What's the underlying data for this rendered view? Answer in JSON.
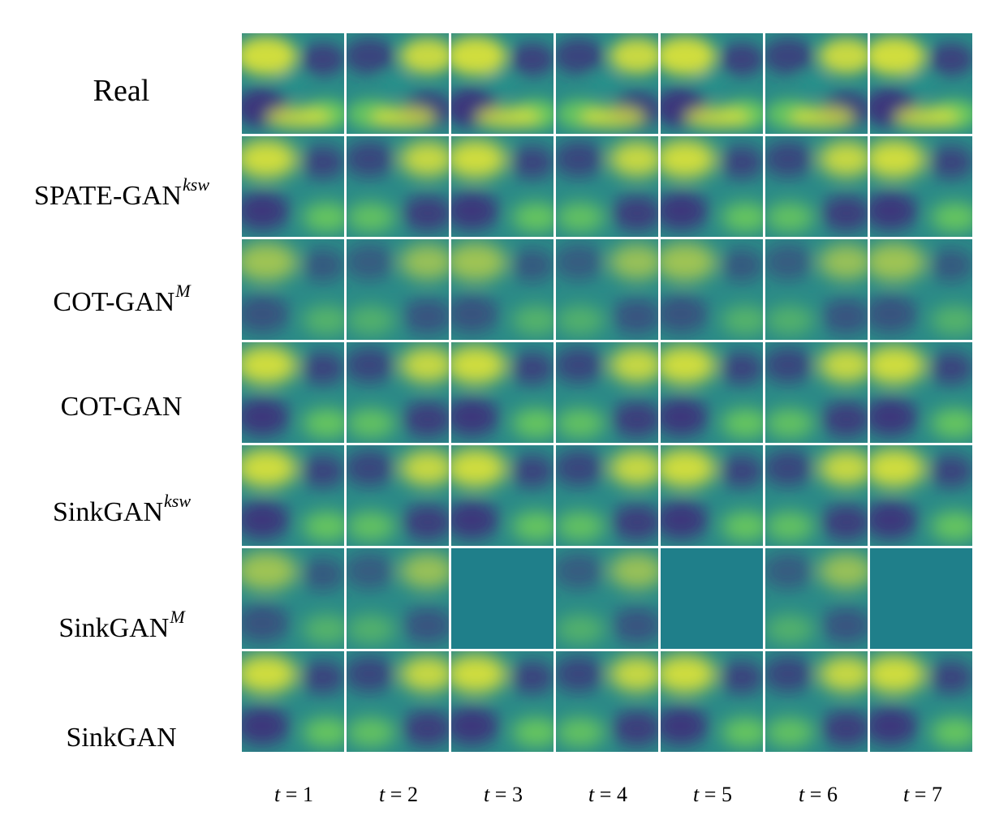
{
  "figure": {
    "rows": [
      {
        "label": "Real",
        "sup": ""
      },
      {
        "label": "SPATE-GAN",
        "sup": "ksw"
      },
      {
        "label": "COT-GAN",
        "sup": "M"
      },
      {
        "label": "COT-GAN",
        "sup": ""
      },
      {
        "label": "SinkGAN",
        "sup": "ksw"
      },
      {
        "label": "SinkGAN",
        "sup": "M"
      },
      {
        "label": "SinkGAN",
        "sup": ""
      }
    ],
    "columns": [
      {
        "var": "t",
        "eq": " = ",
        "value": "1"
      },
      {
        "var": "t",
        "eq": " = ",
        "value": "2"
      },
      {
        "var": "t",
        "eq": " = ",
        "value": "3"
      },
      {
        "var": "t",
        "eq": " = ",
        "value": "4"
      },
      {
        "var": "t",
        "eq": " = ",
        "value": "5"
      },
      {
        "var": "t",
        "eq": " = ",
        "value": "6"
      },
      {
        "var": "t",
        "eq": " = ",
        "value": "7"
      }
    ],
    "colormap": "viridis",
    "colors": {
      "background": "#2a8a87",
      "dark": "#3f2f7a",
      "light": "#d9e13a",
      "mid": "#27928c",
      "bright": "#6fcd59",
      "flat": "#1f7f8a"
    }
  }
}
